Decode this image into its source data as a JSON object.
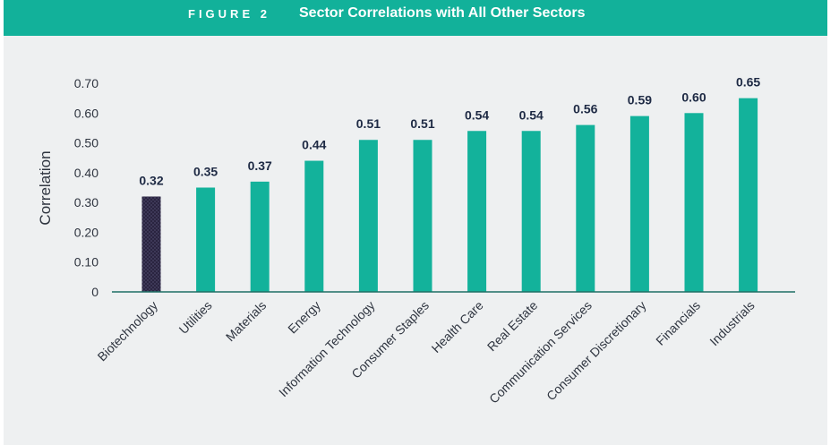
{
  "figure": {
    "label": "FIGURE 2",
    "title": "Sector Correlations with All Other Sectors"
  },
  "colors": {
    "banner": "#12b19a",
    "bar": "#13b29b",
    "highlight": "#2a2440",
    "panel": "#eef0f1",
    "text": "#2f3540",
    "value_text": "#1e2a44"
  },
  "chart_data": {
    "type": "bar",
    "title": "Sector Correlations with All Other Sectors",
    "xlabel": "",
    "ylabel": "Correlation",
    "ylim": [
      0,
      0.7
    ],
    "yticks": [
      0,
      0.1,
      0.2,
      0.3,
      0.4,
      0.5,
      0.6,
      0.7
    ],
    "ytick_labels": [
      "0",
      "0.10",
      "0.20",
      "0.30",
      "0.40",
      "0.50",
      "0.60",
      "0.70"
    ],
    "categories": [
      "Biotechnology",
      "Utilities",
      "Materials",
      "Energy",
      "Information Technology",
      "Consumer Staples",
      "Health Care",
      "Real Estate",
      "Communication Services",
      "Consumer Discretionary",
      "Financials",
      "Industrials"
    ],
    "values": [
      0.32,
      0.35,
      0.37,
      0.44,
      0.51,
      0.51,
      0.54,
      0.54,
      0.56,
      0.59,
      0.6,
      0.65
    ],
    "value_labels": [
      "0.32",
      "0.35",
      "0.37",
      "0.44",
      "0.51",
      "0.51",
      "0.54",
      "0.54",
      "0.56",
      "0.59",
      "0.60",
      "0.65"
    ],
    "highlighted_category": "Biotechnology",
    "grid": false
  }
}
